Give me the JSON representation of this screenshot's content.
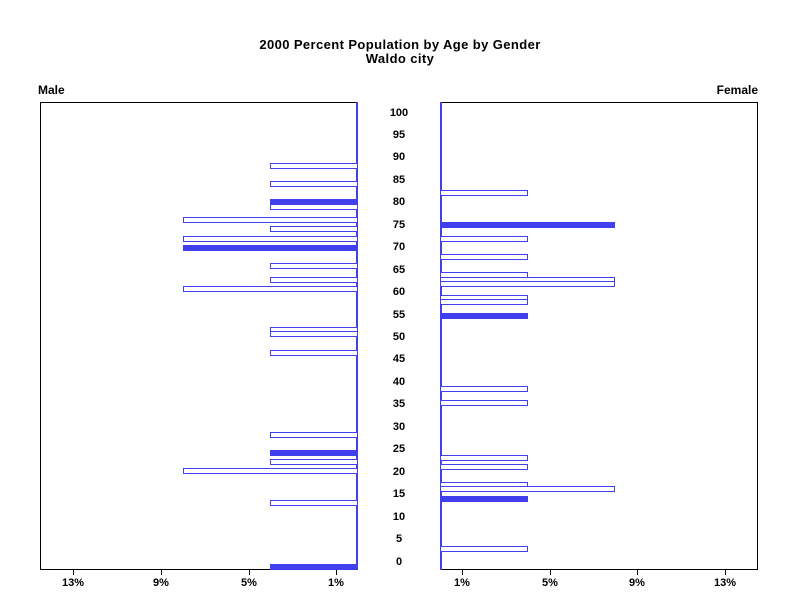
{
  "title": {
    "line1": "2000 Percent Population by Age by Gender",
    "line2": "Waldo city"
  },
  "panel_labels": {
    "male": "Male",
    "female": "Female"
  },
  "colors": {
    "bar_blue": "#4040ee",
    "axis_black": "#000000",
    "background": "#ffffff"
  },
  "chart_data": {
    "type": "bar",
    "subtype": "population-pyramid",
    "title": "2000 Percent Population by Age by Gender",
    "subtitle": "Waldo city",
    "age_axis": {
      "tick_labels": [
        "100",
        "95",
        "90",
        "85",
        "80",
        "75",
        "70",
        "65",
        "60",
        "55",
        "50",
        "45",
        "40",
        "35",
        "30",
        "25",
        "20",
        "15",
        "10",
        "5",
        "0"
      ],
      "range": [
        0,
        100
      ],
      "grid": false
    },
    "pct_axis": {
      "male_tick_labels": [
        "13%",
        "9%",
        "5%",
        "1%"
      ],
      "male_tick_values": [
        13,
        9,
        5,
        1
      ],
      "female_tick_labels": [
        "1%",
        "5%",
        "9%",
        "13%"
      ],
      "female_tick_values": [
        1,
        5,
        9,
        13
      ],
      "range": [
        0,
        14.5
      ]
    },
    "bar_styles_note": "fill=solid means filled blue bar; fill=outline means white bar with blue border",
    "series": [
      {
        "name": "Male",
        "side": "left",
        "bars": [
          {
            "age": 88,
            "pct": 4,
            "fill": "outline"
          },
          {
            "age": 84,
            "pct": 4,
            "fill": "outline"
          },
          {
            "age": 80,
            "pct": 4,
            "fill": "solid"
          },
          {
            "age": 79,
            "pct": 4,
            "fill": "outline"
          },
          {
            "age": 76,
            "pct": 8,
            "fill": "outline"
          },
          {
            "age": 74,
            "pct": 4,
            "fill": "outline"
          },
          {
            "age": 72,
            "pct": 8,
            "fill": "outline"
          },
          {
            "age": 70,
            "pct": 8,
            "fill": "solid"
          },
          {
            "age": 66,
            "pct": 4,
            "fill": "outline"
          },
          {
            "age": 63,
            "pct": 4,
            "fill": "outline"
          },
          {
            "age": 61,
            "pct": 8,
            "fill": "outline"
          },
          {
            "age": 52,
            "pct": 4,
            "fill": "outline"
          },
          {
            "age": 51,
            "pct": 4,
            "fill": "outline"
          },
          {
            "age": 47,
            "pct": 4,
            "fill": "outline"
          },
          {
            "age": 29,
            "pct": 4,
            "fill": "outline"
          },
          {
            "age": 25,
            "pct": 4,
            "fill": "solid"
          },
          {
            "age": 23,
            "pct": 4,
            "fill": "outline"
          },
          {
            "age": 21,
            "pct": 8,
            "fill": "outline"
          },
          {
            "age": 14,
            "pct": 4,
            "fill": "outline"
          },
          {
            "age": 0,
            "pct": 4,
            "fill": "solid"
          }
        ]
      },
      {
        "name": "Female",
        "side": "right",
        "bars": [
          {
            "age": 82,
            "pct": 4,
            "fill": "outline"
          },
          {
            "age": 75,
            "pct": 8,
            "fill": "solid"
          },
          {
            "age": 72,
            "pct": 4,
            "fill": "outline"
          },
          {
            "age": 68,
            "pct": 4,
            "fill": "outline"
          },
          {
            "age": 64,
            "pct": 4,
            "fill": "outline"
          },
          {
            "age": 63,
            "pct": 8,
            "fill": "outline"
          },
          {
            "age": 62,
            "pct": 8,
            "fill": "outline"
          },
          {
            "age": 59,
            "pct": 4,
            "fill": "outline"
          },
          {
            "age": 58,
            "pct": 4,
            "fill": "outline"
          },
          {
            "age": 55,
            "pct": 4,
            "fill": "solid"
          },
          {
            "age": 39,
            "pct": 4,
            "fill": "outline"
          },
          {
            "age": 36,
            "pct": 4,
            "fill": "outline"
          },
          {
            "age": 24,
            "pct": 4,
            "fill": "outline"
          },
          {
            "age": 22,
            "pct": 4,
            "fill": "outline"
          },
          {
            "age": 18,
            "pct": 4,
            "fill": "outline"
          },
          {
            "age": 17,
            "pct": 8,
            "fill": "outline"
          },
          {
            "age": 15,
            "pct": 4,
            "fill": "solid"
          },
          {
            "age": 4,
            "pct": 4,
            "fill": "outline"
          }
        ]
      }
    ]
  }
}
